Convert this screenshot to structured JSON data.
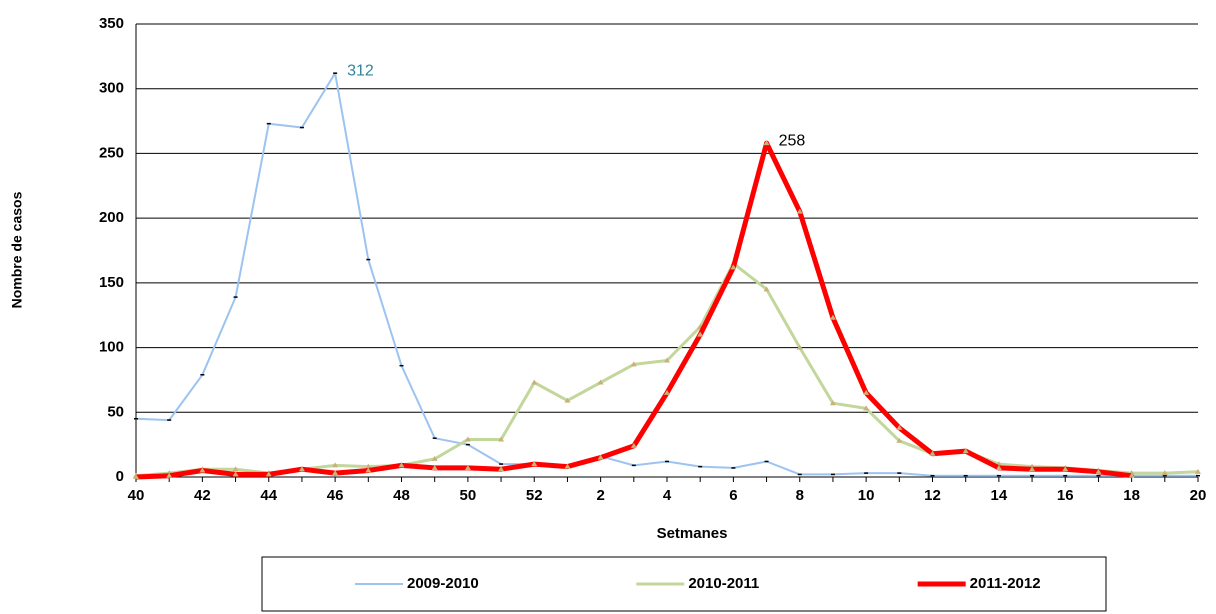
{
  "chart_data": {
    "type": "line",
    "y_label": "Nombre de casos",
    "x_label": "Setmanes",
    "categories": [
      "40",
      null,
      "42",
      null,
      "44",
      null,
      "46",
      null,
      "48",
      null,
      "50",
      null,
      "52",
      null,
      "2",
      null,
      "4",
      null,
      "6",
      null,
      "8",
      null,
      "10",
      null,
      "12",
      null,
      "14",
      null,
      "16",
      null,
      "18",
      null,
      "20"
    ],
    "ylim": [
      0,
      350
    ],
    "yticks": [
      0,
      50,
      100,
      150,
      200,
      250,
      300,
      350
    ],
    "grid": true,
    "legend": "bottom",
    "series": [
      {
        "name": "2009-2010",
        "color": "#9dc3f0",
        "values": [
          45,
          44,
          79,
          139,
          273,
          270,
          312,
          168,
          86,
          30,
          25,
          10,
          10,
          8,
          16,
          9,
          12,
          8,
          7,
          12,
          2,
          2,
          3,
          3,
          1,
          1,
          1,
          1,
          1,
          1,
          1,
          1,
          1
        ],
        "value_labels": [
          null,
          null,
          null,
          null,
          null,
          null,
          "312",
          null,
          null,
          null,
          null,
          null,
          null,
          null,
          null,
          null,
          null,
          null,
          null,
          null,
          null,
          null,
          null,
          null,
          null,
          null,
          null,
          null,
          null,
          null,
          null,
          null,
          null
        ]
      },
      {
        "name": "2010-2011",
        "color": "#c3d69b",
        "values": [
          1,
          3,
          6,
          6,
          3,
          6,
          9,
          8,
          9,
          14,
          29,
          29,
          73,
          59,
          73,
          87,
          90,
          116,
          165,
          145,
          100,
          57,
          53,
          28,
          18,
          20,
          10,
          8,
          7,
          5,
          3,
          3,
          4
        ]
      },
      {
        "name": "2011-2012",
        "color": "#ff0000",
        "values": [
          0,
          1,
          5,
          2,
          2,
          6,
          3,
          5,
          9,
          7,
          7,
          6,
          10,
          8,
          15,
          24,
          65,
          110,
          162,
          258,
          205,
          123,
          65,
          38,
          18,
          20,
          7,
          6,
          6,
          4,
          1,
          null,
          null
        ],
        "value_labels": [
          null,
          null,
          null,
          null,
          null,
          null,
          null,
          null,
          null,
          null,
          null,
          null,
          null,
          null,
          null,
          null,
          null,
          null,
          null,
          "258",
          null,
          null,
          null,
          null,
          null,
          null,
          null,
          null,
          null,
          null,
          null,
          null,
          null
        ]
      }
    ]
  }
}
